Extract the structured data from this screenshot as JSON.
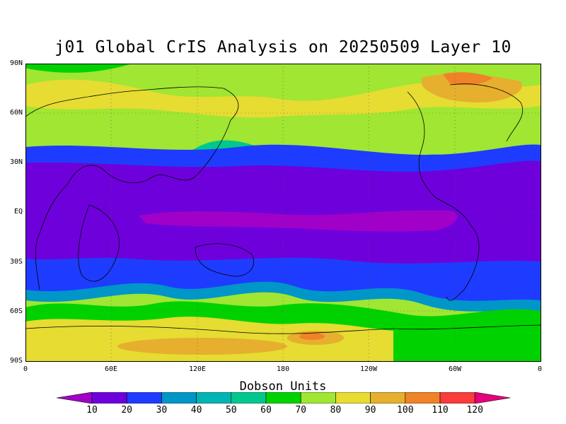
{
  "title": "j01 Global CrIS Analysis on 20250509 Layer 10",
  "units_label": "Dobson Units",
  "lat_labels": [
    "90N",
    "60N",
    "30N",
    "EQ",
    "30S",
    "60S",
    "90S"
  ],
  "lon_labels": [
    "0",
    "60E",
    "120E",
    "180",
    "120W",
    "60W",
    "0"
  ],
  "colorbar": {
    "levels": [
      "10",
      "20",
      "30",
      "40",
      "50",
      "60",
      "70",
      "80",
      "90",
      "100",
      "110",
      "120"
    ],
    "colors": [
      "#a000c8",
      "#6e00dc",
      "#1e3cff",
      "#0096c8",
      "#00b4b4",
      "#00c88c",
      "#00d200",
      "#a0e632",
      "#e6dc32",
      "#e6af2d",
      "#f08228",
      "#fa3c3c",
      "#e6007a"
    ]
  },
  "map": {
    "type": "contour-fill",
    "extent": {
      "lon": [
        0,
        360
      ],
      "lat": [
        -90,
        90
      ]
    },
    "grid": true,
    "coastlines": true
  }
}
